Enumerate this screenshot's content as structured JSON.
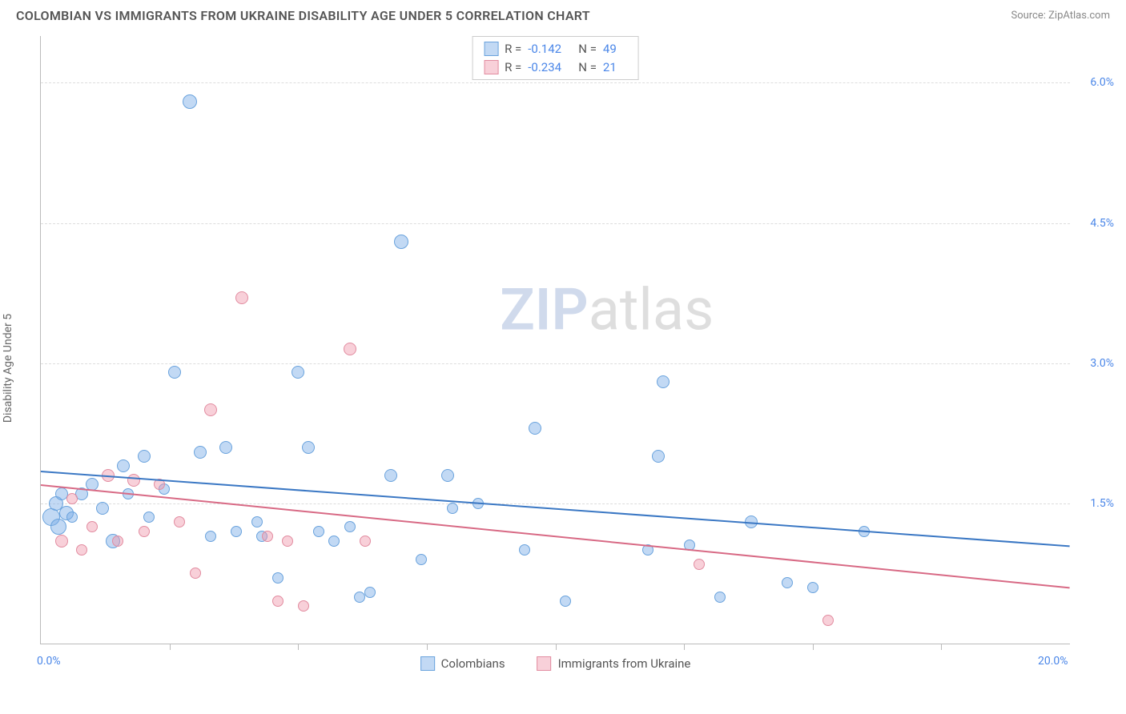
{
  "header": {
    "title": "COLOMBIAN VS IMMIGRANTS FROM UKRAINE DISABILITY AGE UNDER 5 CORRELATION CHART",
    "source": "Source: ZipAtlas.com"
  },
  "ylabel": "Disability Age Under 5",
  "watermark": {
    "prefix": "ZIP",
    "suffix": "atlas"
  },
  "chart": {
    "type": "scatter",
    "xlim": [
      0,
      20
    ],
    "ylim": [
      0,
      6.5
    ],
    "x_end_labels": [
      {
        "x": 0,
        "label": "0.0%"
      },
      {
        "x": 20,
        "label": "20.0%"
      }
    ],
    "x_ticks": [
      2.5,
      5,
      7.5,
      10,
      12.5,
      15,
      17.5
    ],
    "y_ticks": [
      {
        "y": 1.5,
        "label": "1.5%"
      },
      {
        "y": 3.0,
        "label": "3.0%"
      },
      {
        "y": 4.5,
        "label": "4.5%"
      },
      {
        "y": 6.0,
        "label": "6.0%"
      }
    ],
    "grid_color": "#dddddd",
    "axis_color": "#bbbbbb",
    "tick_label_color": "#4a86e8",
    "background_color": "#ffffff",
    "series": [
      {
        "key": "colombians",
        "label": "Colombians",
        "fill": "rgba(120,170,230,0.45)",
        "stroke": "#6aa3dd",
        "line_color": "#3b78c4",
        "r_corr": "-0.142",
        "n": "49",
        "trend": {
          "y_at_x0": 1.85,
          "y_at_xmax": 1.05
        },
        "points": [
          {
            "x": 0.2,
            "y": 1.35,
            "r": 11
          },
          {
            "x": 0.3,
            "y": 1.5,
            "r": 9
          },
          {
            "x": 0.35,
            "y": 1.25,
            "r": 10
          },
          {
            "x": 0.4,
            "y": 1.6,
            "r": 8
          },
          {
            "x": 0.5,
            "y": 1.4,
            "r": 9
          },
          {
            "x": 0.6,
            "y": 1.35,
            "r": 7
          },
          {
            "x": 0.8,
            "y": 1.6,
            "r": 8
          },
          {
            "x": 1.0,
            "y": 1.7,
            "r": 8
          },
          {
            "x": 1.2,
            "y": 1.45,
            "r": 8
          },
          {
            "x": 1.4,
            "y": 1.1,
            "r": 9
          },
          {
            "x": 1.6,
            "y": 1.9,
            "r": 8
          },
          {
            "x": 1.7,
            "y": 1.6,
            "r": 7
          },
          {
            "x": 2.0,
            "y": 2.0,
            "r": 8
          },
          {
            "x": 2.1,
            "y": 1.35,
            "r": 7
          },
          {
            "x": 2.4,
            "y": 1.65,
            "r": 7
          },
          {
            "x": 2.6,
            "y": 2.9,
            "r": 8
          },
          {
            "x": 2.9,
            "y": 5.8,
            "r": 9
          },
          {
            "x": 3.1,
            "y": 2.05,
            "r": 8
          },
          {
            "x": 3.3,
            "y": 1.15,
            "r": 7
          },
          {
            "x": 3.6,
            "y": 2.1,
            "r": 8
          },
          {
            "x": 3.8,
            "y": 1.2,
            "r": 7
          },
          {
            "x": 4.2,
            "y": 1.3,
            "r": 7
          },
          {
            "x": 4.3,
            "y": 1.15,
            "r": 7
          },
          {
            "x": 4.6,
            "y": 0.7,
            "r": 7
          },
          {
            "x": 5.0,
            "y": 2.9,
            "r": 8
          },
          {
            "x": 5.2,
            "y": 2.1,
            "r": 8
          },
          {
            "x": 5.4,
            "y": 1.2,
            "r": 7
          },
          {
            "x": 5.7,
            "y": 1.1,
            "r": 7
          },
          {
            "x": 6.0,
            "y": 1.25,
            "r": 7
          },
          {
            "x": 6.2,
            "y": 0.5,
            "r": 7
          },
          {
            "x": 6.4,
            "y": 0.55,
            "r": 7
          },
          {
            "x": 6.8,
            "y": 1.8,
            "r": 8
          },
          {
            "x": 7.0,
            "y": 4.3,
            "r": 9
          },
          {
            "x": 7.4,
            "y": 0.9,
            "r": 7
          },
          {
            "x": 7.9,
            "y": 1.8,
            "r": 8
          },
          {
            "x": 8.0,
            "y": 1.45,
            "r": 7
          },
          {
            "x": 8.5,
            "y": 1.5,
            "r": 7
          },
          {
            "x": 9.4,
            "y": 1.0,
            "r": 7
          },
          {
            "x": 9.6,
            "y": 2.3,
            "r": 8
          },
          {
            "x": 10.2,
            "y": 0.45,
            "r": 7
          },
          {
            "x": 11.8,
            "y": 1.0,
            "r": 7
          },
          {
            "x": 12.0,
            "y": 2.0,
            "r": 8
          },
          {
            "x": 12.1,
            "y": 2.8,
            "r": 8
          },
          {
            "x": 12.6,
            "y": 1.05,
            "r": 7
          },
          {
            "x": 13.2,
            "y": 0.5,
            "r": 7
          },
          {
            "x": 13.8,
            "y": 1.3,
            "r": 8
          },
          {
            "x": 14.5,
            "y": 0.65,
            "r": 7
          },
          {
            "x": 15.0,
            "y": 0.6,
            "r": 7
          },
          {
            "x": 16.0,
            "y": 1.2,
            "r": 7
          }
        ]
      },
      {
        "key": "ukraine",
        "label": "Immigrants from Ukraine",
        "fill": "rgba(240,150,170,0.45)",
        "stroke": "#e28ca0",
        "line_color": "#d86a85",
        "r_corr": "-0.234",
        "n": "21",
        "trend": {
          "y_at_x0": 1.7,
          "y_at_xmax": 0.6
        },
        "points": [
          {
            "x": 0.4,
            "y": 1.1,
            "r": 8
          },
          {
            "x": 0.6,
            "y": 1.55,
            "r": 7
          },
          {
            "x": 0.8,
            "y": 1.0,
            "r": 7
          },
          {
            "x": 1.0,
            "y": 1.25,
            "r": 7
          },
          {
            "x": 1.3,
            "y": 1.8,
            "r": 8
          },
          {
            "x": 1.5,
            "y": 1.1,
            "r": 7
          },
          {
            "x": 1.8,
            "y": 1.75,
            "r": 8
          },
          {
            "x": 2.0,
            "y": 1.2,
            "r": 7
          },
          {
            "x": 2.3,
            "y": 1.7,
            "r": 7
          },
          {
            "x": 2.7,
            "y": 1.3,
            "r": 7
          },
          {
            "x": 3.0,
            "y": 0.75,
            "r": 7
          },
          {
            "x": 3.3,
            "y": 2.5,
            "r": 8
          },
          {
            "x": 3.9,
            "y": 3.7,
            "r": 8
          },
          {
            "x": 4.4,
            "y": 1.15,
            "r": 7
          },
          {
            "x": 4.6,
            "y": 0.45,
            "r": 7
          },
          {
            "x": 4.8,
            "y": 1.1,
            "r": 7
          },
          {
            "x": 5.1,
            "y": 0.4,
            "r": 7
          },
          {
            "x": 6.0,
            "y": 3.15,
            "r": 8
          },
          {
            "x": 6.3,
            "y": 1.1,
            "r": 7
          },
          {
            "x": 12.8,
            "y": 0.85,
            "r": 7
          },
          {
            "x": 15.3,
            "y": 0.25,
            "r": 7
          }
        ]
      }
    ]
  }
}
